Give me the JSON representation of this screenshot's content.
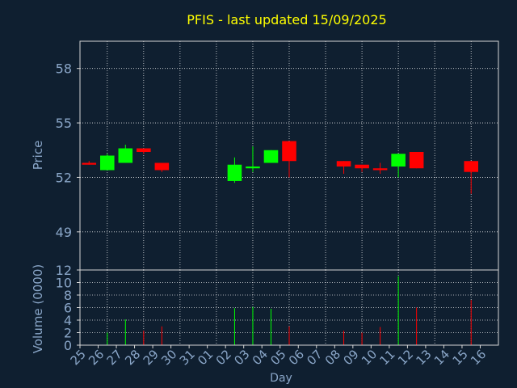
{
  "chart_data": {
    "type": "candlestick",
    "title": "PFIS - last updated 15/09/2025",
    "xlabel": "Day",
    "colors": {
      "background": "#0f1f30",
      "title": "#ffff00",
      "axis_text": "#8aa6c8",
      "frame": "#d6d6d6",
      "grid": "#ffffff",
      "up": "#00ff00",
      "down": "#ff0000"
    },
    "x_tick_labels": [
      "25",
      "26",
      "27",
      "28",
      "29",
      "30",
      "31",
      "01",
      "02",
      "03",
      "04",
      "05",
      "06",
      "07",
      "08",
      "09",
      "10",
      "11",
      "12",
      "13",
      "14",
      "15",
      "16"
    ],
    "price_panel": {
      "ylabel": "Price",
      "yticks": [
        49,
        52,
        55,
        58
      ],
      "ylim": [
        46.9,
        59.5
      ],
      "candles": [
        {
          "x": "25",
          "open": 52.8,
          "high": 52.9,
          "low": 52.7,
          "close": 52.7
        },
        {
          "x": "26",
          "open": 52.4,
          "high": 53.3,
          "low": 52.4,
          "close": 53.2
        },
        {
          "x": "27",
          "open": 52.8,
          "high": 53.8,
          "low": 52.8,
          "close": 53.6
        },
        {
          "x": "28",
          "open": 53.6,
          "high": 53.6,
          "low": 53.3,
          "close": 53.4
        },
        {
          "x": "29",
          "open": 52.8,
          "high": 52.8,
          "low": 52.3,
          "close": 52.4
        },
        {
          "x": "02",
          "open": 51.8,
          "high": 53.1,
          "low": 51.7,
          "close": 52.7
        },
        {
          "x": "03",
          "open": 52.5,
          "high": 53.7,
          "low": 52.3,
          "close": 52.6
        },
        {
          "x": "04",
          "open": 52.8,
          "high": 53.5,
          "low": 52.8,
          "close": 53.5
        },
        {
          "x": "05",
          "open": 54.0,
          "high": 54.0,
          "low": 52.0,
          "close": 52.9
        },
        {
          "x": "08",
          "open": 52.9,
          "high": 52.9,
          "low": 52.2,
          "close": 52.6
        },
        {
          "x": "09",
          "open": 52.7,
          "high": 52.7,
          "low": 52.3,
          "close": 52.5
        },
        {
          "x": "10",
          "open": 52.5,
          "high": 52.8,
          "low": 52.2,
          "close": 52.4
        },
        {
          "x": "11",
          "open": 52.6,
          "high": 53.3,
          "low": 52.0,
          "close": 53.3
        },
        {
          "x": "12",
          "open": 53.4,
          "high": 53.4,
          "low": 52.5,
          "close": 52.5
        },
        {
          "x": "15",
          "open": 52.9,
          "high": 52.9,
          "low": 51.1,
          "close": 52.3
        }
      ]
    },
    "volume_panel": {
      "ylabel": "Volume (0000)",
      "yticks": [
        0,
        2,
        4,
        6,
        8,
        10,
        12
      ],
      "ylim": [
        0,
        12
      ],
      "bars": [
        {
          "x": "26",
          "value": 2.0,
          "direction": "up"
        },
        {
          "x": "27",
          "value": 4.1,
          "direction": "up"
        },
        {
          "x": "28",
          "value": 2.3,
          "direction": "down"
        },
        {
          "x": "29",
          "value": 3.0,
          "direction": "down"
        },
        {
          "x": "02",
          "value": 5.9,
          "direction": "up"
        },
        {
          "x": "03",
          "value": 6.1,
          "direction": "up"
        },
        {
          "x": "04",
          "value": 5.8,
          "direction": "up"
        },
        {
          "x": "05",
          "value": 3.0,
          "direction": "down"
        },
        {
          "x": "08",
          "value": 2.3,
          "direction": "down"
        },
        {
          "x": "09",
          "value": 2.0,
          "direction": "down"
        },
        {
          "x": "10",
          "value": 2.9,
          "direction": "down"
        },
        {
          "x": "11",
          "value": 11.0,
          "direction": "up"
        },
        {
          "x": "12",
          "value": 6.0,
          "direction": "down"
        },
        {
          "x": "15",
          "value": 7.2,
          "direction": "down"
        }
      ]
    }
  }
}
